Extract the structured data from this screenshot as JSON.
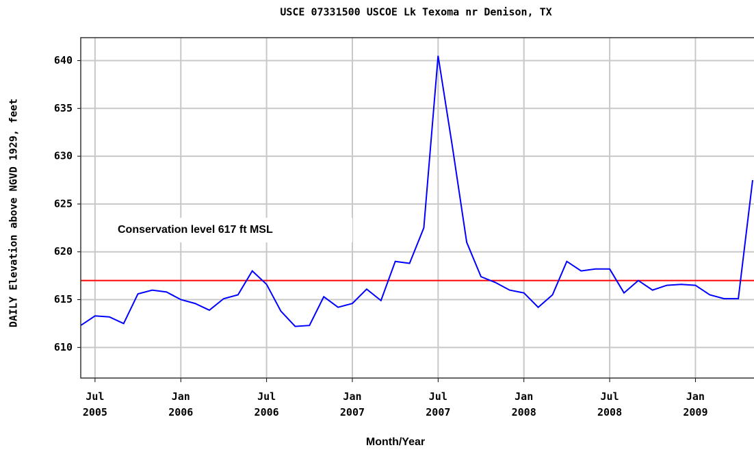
{
  "chart_data": {
    "type": "line",
    "title": "USCE 07331500 USCOE Lk Texoma nr Denison, TX",
    "x_label": "Month/Year",
    "y_label": "DAILY Elevation above NGVD 1929, feet",
    "annotation": "Conservation level 617 ft MSL",
    "reference_line": {
      "value": 617,
      "color": "#ff0000"
    },
    "color": "#0000ff",
    "grid": true,
    "x": [
      "2005-06",
      "2005-07",
      "2005-08",
      "2005-09",
      "2005-10",
      "2005-11",
      "2005-12",
      "2006-01",
      "2006-02",
      "2006-03",
      "2006-04",
      "2006-05",
      "2006-06",
      "2006-07",
      "2006-08",
      "2006-09",
      "2006-10",
      "2006-11",
      "2006-12",
      "2007-01",
      "2007-02",
      "2007-03",
      "2007-04",
      "2007-05",
      "2007-06",
      "2007-07",
      "2007-08",
      "2007-09",
      "2007-10",
      "2007-11",
      "2007-12",
      "2008-01",
      "2008-02",
      "2008-03",
      "2008-04",
      "2008-05",
      "2008-06",
      "2008-07",
      "2008-08",
      "2008-09",
      "2008-10",
      "2008-11",
      "2008-12",
      "2009-01",
      "2009-02",
      "2009-03",
      "2009-04",
      "2009-05"
    ],
    "values": [
      612.3,
      613.3,
      613.2,
      612.5,
      615.6,
      616.0,
      615.8,
      615.0,
      614.6,
      613.9,
      615.1,
      615.5,
      618.0,
      616.6,
      613.8,
      612.2,
      612.3,
      615.3,
      614.2,
      614.6,
      616.1,
      614.9,
      619.0,
      618.8,
      622.5,
      640.5,
      631.0,
      621.0,
      617.4,
      616.8,
      616.0,
      615.7,
      614.2,
      615.5,
      619.0,
      618.0,
      618.2,
      618.2,
      615.7,
      617.0,
      616.0,
      616.5,
      616.6,
      616.5,
      615.5,
      615.1,
      615.1,
      627.5
    ],
    "xlim": [
      "2005-06",
      "2009-05"
    ],
    "xticks": [
      {
        "value": "2005-07",
        "label": "Jul 2005"
      },
      {
        "value": "2006-01",
        "label": "Jan 2006"
      },
      {
        "value": "2006-07",
        "label": "Jul 2006"
      },
      {
        "value": "2007-01",
        "label": "Jan 2007"
      },
      {
        "value": "2007-07",
        "label": "Jul 2007"
      },
      {
        "value": "2008-01",
        "label": "Jan 2008"
      },
      {
        "value": "2008-07",
        "label": "Jul 2008"
      },
      {
        "value": "2009-01",
        "label": "Jan 2009"
      }
    ],
    "ylim": [
      606.8,
      642.4
    ],
    "yticks": [
      610,
      615,
      620,
      625,
      630,
      635,
      640
    ]
  }
}
